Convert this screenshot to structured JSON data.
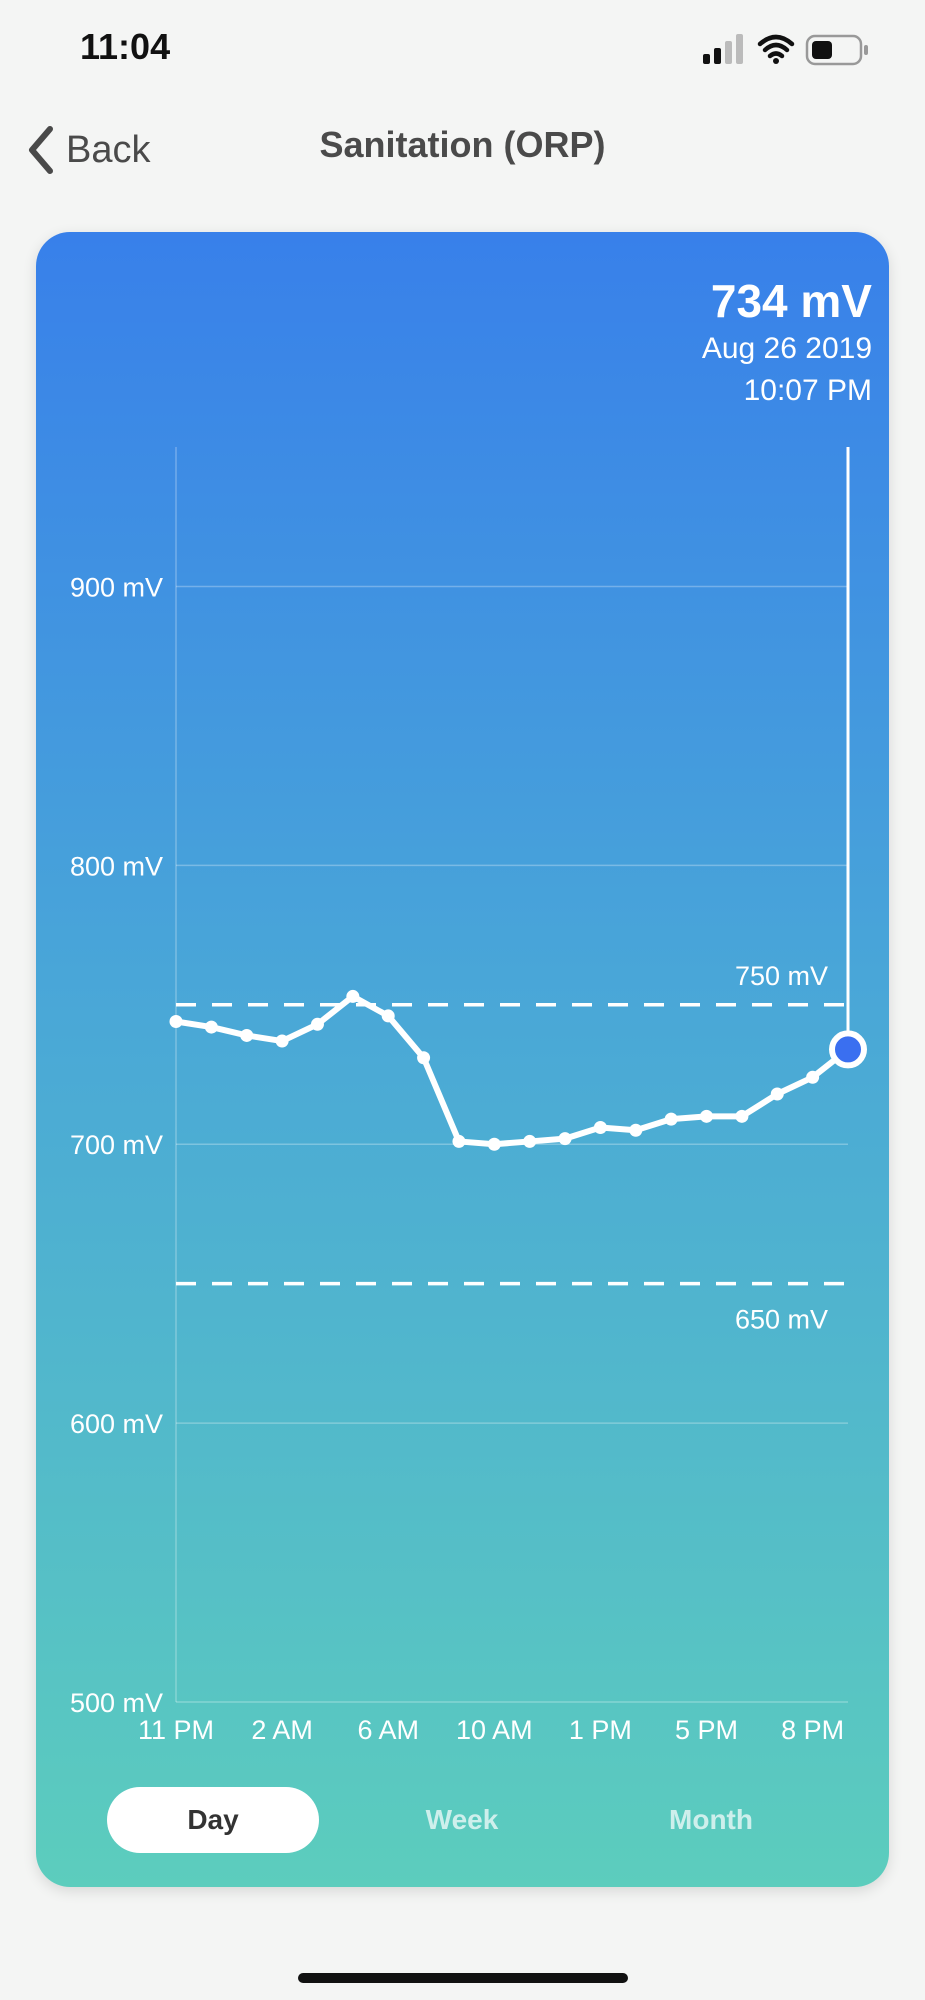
{
  "status_bar": {
    "time": "11:04",
    "icons": [
      "signal-icon",
      "wifi-icon",
      "battery-icon"
    ]
  },
  "nav": {
    "back_label": "Back",
    "title": "Sanitation (ORP)"
  },
  "readout": {
    "value": "734 mV",
    "date": "Aug 26 2019",
    "time": "10:07 PM"
  },
  "range_buttons": [
    {
      "label": "Day",
      "selected": true
    },
    {
      "label": "Week",
      "selected": false
    },
    {
      "label": "Month",
      "selected": false
    }
  ],
  "colors": {
    "gradient_top": "#3880ea",
    "gradient_bottom": "#5ccdbd",
    "line": "#ffffff",
    "selected_point": "#3a6ff0"
  },
  "chart_data": {
    "type": "line",
    "title": "",
    "xlabel": "",
    "ylabel": "",
    "ylim": [
      500,
      950
    ],
    "y_ticks": [
      500,
      600,
      700,
      800,
      900
    ],
    "y_tick_labels": [
      "500 mV",
      "600 mV",
      "700 mV",
      "800 mV",
      "900 mV"
    ],
    "x_tick_labels": [
      "11 PM",
      "2 AM",
      "6 AM",
      "10 AM",
      "1 PM",
      "5 PM",
      "8 PM"
    ],
    "x_count": 20,
    "x_tick_indices": [
      0,
      3,
      6,
      9,
      12,
      15,
      18
    ],
    "series": [
      {
        "values": [
          744,
          742,
          739,
          737,
          743,
          753,
          746,
          731,
          701,
          700,
          701,
          702,
          706,
          705,
          709,
          710,
          710,
          718,
          724,
          734
        ]
      }
    ],
    "reference_lines": [
      {
        "value": 750,
        "label": "750 mV",
        "style": "dashed"
      },
      {
        "value": 650,
        "label": "650 mV",
        "style": "dashed"
      }
    ],
    "selected_index": 19,
    "grid": true
  }
}
